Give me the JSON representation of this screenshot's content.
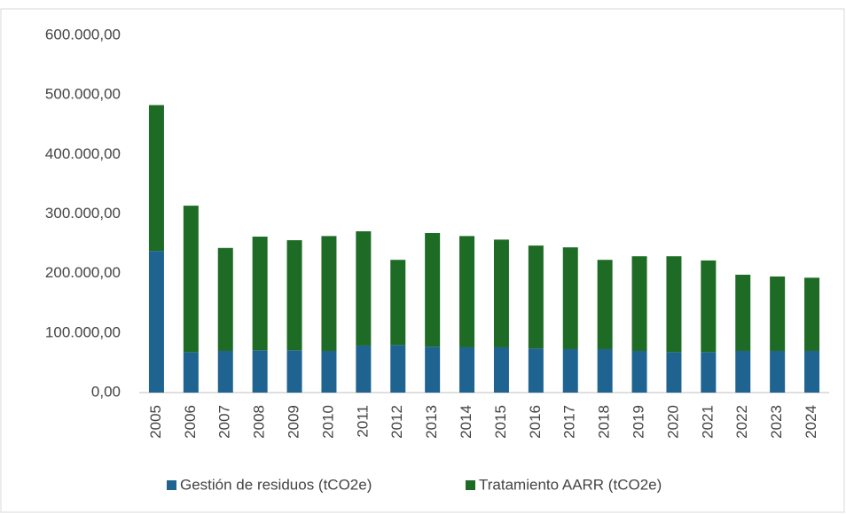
{
  "chart_data": {
    "type": "stacked_bar",
    "categories": [
      "2005",
      "2006",
      "2007",
      "2008",
      "2009",
      "2010",
      "2011",
      "2012",
      "2013",
      "2014",
      "2015",
      "2016",
      "2017",
      "2018",
      "2019",
      "2020",
      "2021",
      "2022",
      "2023",
      "2024"
    ],
    "series": [
      {
        "name": "Gestión de residuos (tCO2e)",
        "color": "#1f6391",
        "values": [
          238000,
          68000,
          70000,
          71000,
          71000,
          70000,
          79000,
          80000,
          77000,
          76000,
          76000,
          74000,
          73000,
          73000,
          70000,
          68000,
          68000,
          70000,
          70000,
          70000
        ]
      },
      {
        "name": "Tratamiento AARR (tCO2e)",
        "color": "#1e6b25",
        "values": [
          245000,
          246000,
          173000,
          191000,
          185000,
          193000,
          192000,
          143000,
          191000,
          187000,
          181000,
          173000,
          171000,
          150000,
          159000,
          161000,
          154000,
          128000,
          125000,
          123000
        ]
      }
    ],
    "ylim": [
      0,
      600000
    ],
    "yticks": [
      {
        "value": 0,
        "label": "0,00"
      },
      {
        "value": 100000,
        "label": "100.000,00"
      },
      {
        "value": 200000,
        "label": "200.000,00"
      },
      {
        "value": 300000,
        "label": "300.000,00"
      },
      {
        "value": 400000,
        "label": "400.000,00"
      },
      {
        "value": 500000,
        "label": "500.000,00"
      },
      {
        "value": 600000,
        "label": "600.000,00"
      }
    ],
    "grid": false,
    "legend": "bottom"
  }
}
